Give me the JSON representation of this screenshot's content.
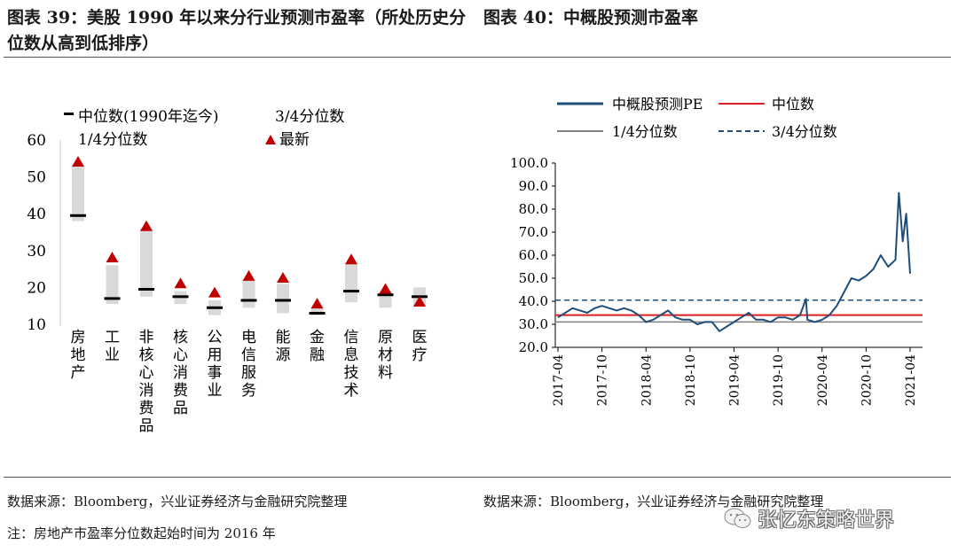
{
  "left_title": "图表 39：美股 1990 年以来分行业预测市盈率（所处历史分位数从高到低排序）",
  "right_title": "图表 40：中概股预测市盈率",
  "left_source": "数据来源：Bloomberg，兴业证券经济与金融研究院整理",
  "right_source": "数据来源：Bloomberg，兴业证券经济与金融研究院整理",
  "note": "注：房地产市盈率分位数起始时间为 2016 年",
  "watermark": "张忆东策略世界",
  "colors": {
    "latest": "#c00000",
    "range": "#d9d9d9",
    "median": "#000000",
    "pe_line": "#1f4e79",
    "median_line": "#e02020",
    "q1_line": "#808080",
    "q3_line": "#1f4e79"
  },
  "chart_data": [
    {
      "type": "range",
      "legend": {
        "median": "中位数(1990年迄今)",
        "q3": "3/4分位数",
        "q1": "1/4分位数",
        "latest": "最新"
      },
      "ylim": [
        10,
        60
      ],
      "yticks": [
        10,
        20,
        30,
        40,
        50,
        60
      ],
      "categories": [
        "房地产",
        "工业",
        "非核心消费品",
        "核心消费品",
        "公用事业",
        "电信服务",
        "能源",
        "金融",
        "信息技术",
        "原材料",
        "医疗"
      ],
      "q1": [
        38,
        15.5,
        17.5,
        15.5,
        12.5,
        14.5,
        13,
        12.5,
        16,
        14.5,
        15
      ],
      "q3": [
        53,
        26,
        36,
        19,
        16.5,
        22,
        21,
        14.5,
        26.5,
        19,
        20
      ],
      "median": [
        39.5,
        17,
        19.5,
        17.5,
        14.5,
        16.5,
        16.5,
        13,
        19,
        18,
        17.5
      ],
      "latest": [
        54,
        28,
        36.5,
        21,
        18.5,
        23,
        22.5,
        15.5,
        27.5,
        19.5,
        16
      ]
    },
    {
      "type": "line",
      "legend": {
        "pe": "中概股预测PE",
        "median": "中位数",
        "q1": "1/4分位数",
        "q3": "3/4分位数"
      },
      "ylim": [
        20,
        100
      ],
      "yticks": [
        "100.0",
        "90.0",
        "80.0",
        "70.0",
        "60.0",
        "50.0",
        "40.0",
        "30.0",
        "20.0"
      ],
      "xticks": [
        "2017-04",
        "2017-10",
        "2018-04",
        "2018-10",
        "2019-04",
        "2019-10",
        "2020-04",
        "2020-10",
        "2021-04"
      ],
      "median_value": 34,
      "q1_value": 31,
      "q3_value": 40.5,
      "series": {
        "x": [
          "2017-04",
          "2017-05",
          "2017-06",
          "2017-07",
          "2017-08",
          "2017-09",
          "2017-10",
          "2017-11",
          "2017-12",
          "2018-01",
          "2018-02",
          "2018-03",
          "2018-04",
          "2018-05",
          "2018-06",
          "2018-07",
          "2018-08",
          "2018-09",
          "2018-10",
          "2018-11",
          "2018-12",
          "2019-01",
          "2019-02",
          "2019-03",
          "2019-04",
          "2019-05",
          "2019-06",
          "2019-07",
          "2019-08",
          "2019-09",
          "2019-10",
          "2019-11",
          "2019-12",
          "2020-01",
          "2020-01-25",
          "2020-02",
          "2020-03",
          "2020-04",
          "2020-05",
          "2020-06",
          "2020-07",
          "2020-08",
          "2020-09",
          "2020-10",
          "2020-11",
          "2020-12",
          "2021-01",
          "2021-02",
          "2021-02-15",
          "2021-03",
          "2021-03-15",
          "2021-04"
        ],
        "y": [
          33,
          35,
          37,
          36,
          35,
          37,
          38,
          37,
          36,
          37,
          36,
          34,
          31,
          32,
          34,
          36,
          33,
          32,
          32,
          30,
          31,
          31,
          27,
          29,
          31,
          33,
          35,
          32,
          32,
          31,
          33,
          33,
          32,
          34,
          41,
          32,
          31,
          32,
          34,
          38,
          44,
          50,
          49,
          51,
          54,
          60,
          55,
          58,
          87,
          66,
          78,
          52
        ]
      }
    }
  ]
}
